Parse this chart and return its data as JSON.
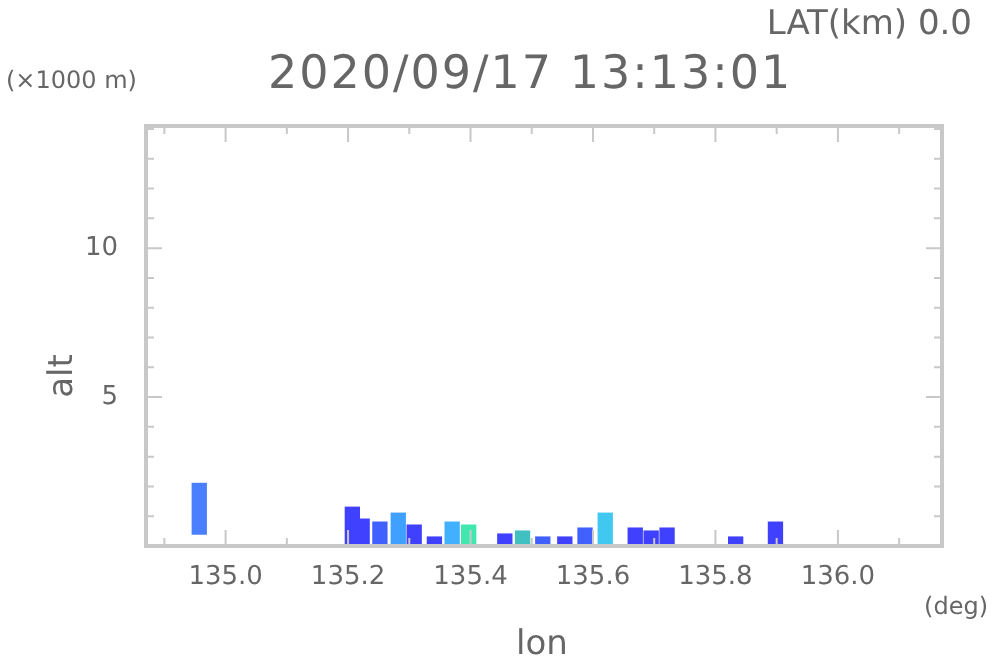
{
  "chart_data": {
    "type": "bar",
    "title": "2020/09/17 13:13:01",
    "xlabel": "lon",
    "ylabel": "alt",
    "annotations": [
      "LAT(km) 0.0",
      "(×1000 m)",
      "(deg)"
    ],
    "x": [
      134.957,
      135.207,
      135.223,
      135.252,
      135.282,
      135.308,
      135.341,
      135.37,
      135.397,
      135.456,
      135.485,
      135.518,
      135.554,
      135.587,
      135.62,
      135.669,
      135.695,
      135.721,
      135.833,
      135.898
    ],
    "base": [
      0.4,
      0,
      0,
      0,
      0,
      0,
      0,
      0,
      0,
      0,
      0,
      0,
      0,
      0,
      0,
      0,
      0,
      0,
      0,
      0
    ],
    "values": [
      1.7,
      1.3,
      0.9,
      0.8,
      1.1,
      0.7,
      0.3,
      0.8,
      0.7,
      0.4,
      0.5,
      0.3,
      0.3,
      0.6,
      1.1,
      0.6,
      0.5,
      0.6,
      0.3,
      0.8
    ],
    "colors": [
      "#4a80ff",
      "#4040ff",
      "#4040ff",
      "#4060ff",
      "#40a0ff",
      "#4040ff",
      "#4040ff",
      "#40b0ff",
      "#40e8b0",
      "#4040ff",
      "#40c0c0",
      "#4060ff",
      "#4040ff",
      "#4060ff",
      "#40c8f0",
      "#4040ff",
      "#4040ff",
      "#4040ff",
      "#4040ff",
      "#4040ff"
    ],
    "xlim": [
      134.87,
      136.17
    ],
    "xticks": [
      {
        "value": 134.9,
        "label": null
      },
      {
        "value": 135,
        "label": "135.0"
      },
      {
        "value": 135.1,
        "label": null
      },
      {
        "value": 135.2,
        "label": "135.2"
      },
      {
        "value": 135.3,
        "label": null
      },
      {
        "value": 135.4,
        "label": "135.4"
      },
      {
        "value": 135.5,
        "label": null
      },
      {
        "value": 135.6,
        "label": "135.6"
      },
      {
        "value": 135.7,
        "label": null
      },
      {
        "value": 135.8,
        "label": "135.8"
      },
      {
        "value": 135.9,
        "label": null
      },
      {
        "value": 136,
        "label": "136.0"
      },
      {
        "value": 136.1,
        "label": null
      }
    ],
    "ylim": [
      0,
      14.1
    ],
    "yticks": [
      {
        "value": 1,
        "label": null
      },
      {
        "value": 2,
        "label": null
      },
      {
        "value": 3,
        "label": null
      },
      {
        "value": 4,
        "label": null
      },
      5,
      {
        "value": 6,
        "label": null
      },
      {
        "value": 7,
        "label": null
      },
      {
        "value": 8,
        "label": null
      },
      {
        "value": 9,
        "label": null
      },
      10,
      {
        "value": 11,
        "label": null
      },
      {
        "value": 12,
        "label": null
      },
      {
        "value": 13,
        "label": null
      },
      {
        "value": 14,
        "label": null
      }
    ],
    "grid": false,
    "legend": false
  }
}
